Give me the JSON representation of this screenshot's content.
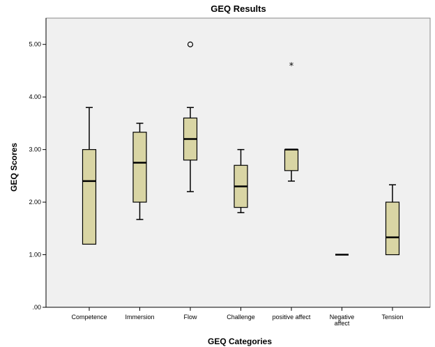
{
  "chart_data": {
    "type": "boxplot",
    "title": "GEQ Results",
    "xlabel": "GEQ Categories",
    "ylabel": "GEQ Scores",
    "ylim": [
      0,
      5.5
    ],
    "yticks": [
      ".00",
      "1.00",
      "2.00",
      "3.00",
      "4.00",
      "5.00"
    ],
    "ytick_values": [
      0,
      1,
      2,
      3,
      4,
      5
    ],
    "grid": false,
    "colors": {
      "plot_background": "#f0f0f0",
      "box_fill": "#d9d5a4",
      "box_stroke": "#000000"
    },
    "categories": [
      {
        "label": [
          "Competence"
        ],
        "min": 1.2,
        "q1": 1.2,
        "median": 2.4,
        "q3": 3.0,
        "max": 3.8,
        "outliers": []
      },
      {
        "label": [
          "Immersion"
        ],
        "min": 1.67,
        "q1": 2.0,
        "median": 2.75,
        "q3": 3.33,
        "max": 3.5,
        "outliers": []
      },
      {
        "label": [
          "Flow"
        ],
        "min": 2.2,
        "q1": 2.8,
        "median": 3.2,
        "q3": 3.6,
        "max": 3.8,
        "outliers": [
          {
            "value": 5.0,
            "marker": "circle"
          }
        ]
      },
      {
        "label": [
          "Challenge"
        ],
        "min": 1.8,
        "q1": 1.9,
        "median": 2.3,
        "q3": 2.7,
        "max": 3.0,
        "outliers": []
      },
      {
        "label": [
          "positive affect"
        ],
        "min": 2.4,
        "q1": 2.6,
        "median": 3.0,
        "q3": 3.0,
        "max": 3.0,
        "outliers": [
          {
            "value": 4.6,
            "marker": "star"
          }
        ]
      },
      {
        "label": [
          "Negative",
          "affect"
        ],
        "min": 1.0,
        "q1": 1.0,
        "median": 1.0,
        "q3": 1.0,
        "max": 1.0,
        "outliers": []
      },
      {
        "label": [
          "Tension"
        ],
        "min": 1.0,
        "q1": 1.0,
        "median": 1.33,
        "q3": 2.0,
        "max": 2.33,
        "outliers": []
      }
    ]
  }
}
